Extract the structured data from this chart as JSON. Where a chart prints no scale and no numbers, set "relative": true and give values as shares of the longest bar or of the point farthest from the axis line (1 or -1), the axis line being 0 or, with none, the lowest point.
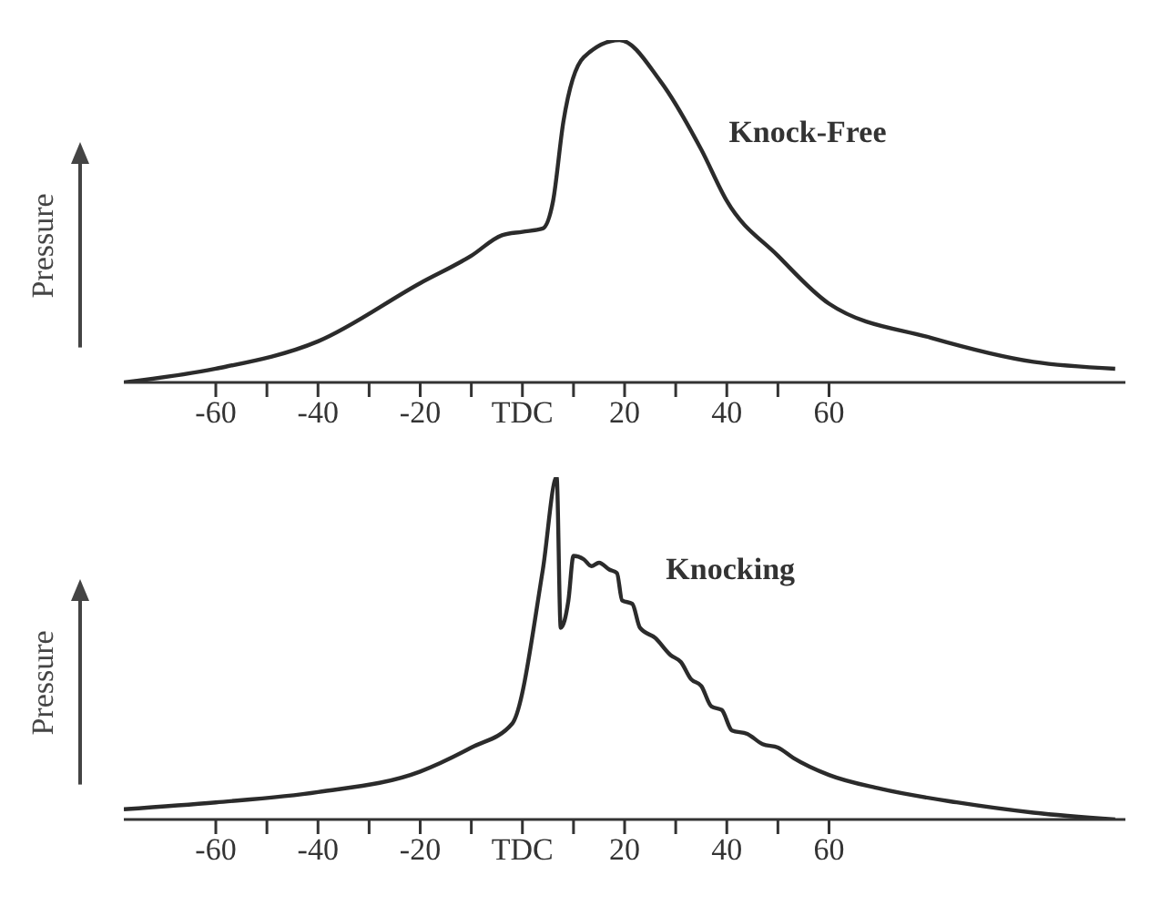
{
  "chart_data": [
    {
      "type": "line",
      "ylabel": "Pressure",
      "relative": true,
      "tick_labels": "x",
      "xlim": [
        -78,
        118
      ],
      "xticks": [
        -60,
        {
          "value": -50,
          "label": null
        },
        -40,
        {
          "value": -30,
          "label": null
        },
        -20,
        {
          "value": -10,
          "label": null
        },
        {
          "value": 0,
          "label": "TDC"
        },
        {
          "value": 10,
          "label": null
        },
        20,
        {
          "value": 30,
          "label": null
        },
        40,
        {
          "value": 50,
          "label": null
        },
        60
      ],
      "series": [
        {
          "name": "Knock-Free",
          "color": "#2b2b2b",
          "x": [
            -78,
            -60,
            -40,
            -20,
            -10,
            -4,
            0,
            4,
            6,
            8,
            12,
            19,
            27,
            35,
            40,
            50,
            60,
            80,
            100,
            116
          ],
          "values": [
            0,
            0.04,
            0.12,
            0.29,
            0.37,
            0.43,
            0.44,
            0.45,
            0.53,
            0.76,
            0.95,
            1,
            0.88,
            0.68,
            0.53,
            0.37,
            0.23,
            0.13,
            0.06,
            0.04
          ]
        }
      ]
    },
    {
      "type": "line",
      "ylabel": "Pressure",
      "relative": true,
      "tick_labels": "x",
      "xlim": [
        -78,
        118
      ],
      "xticks": [
        -60,
        {
          "value": -50,
          "label": null
        },
        -40,
        {
          "value": -30,
          "label": null
        },
        -20,
        {
          "value": -10,
          "label": null
        },
        {
          "value": 0,
          "label": "TDC"
        },
        {
          "value": 10,
          "label": null
        },
        20,
        {
          "value": 30,
          "label": null
        },
        40,
        {
          "value": 50,
          "label": null
        },
        60
      ],
      "series": [
        {
          "name": "Knocking",
          "color": "#2b2b2b",
          "x": [
            -78,
            -60,
            -40,
            -20,
            -10,
            -2,
            4,
            6.7,
            7.5,
            9,
            10,
            12,
            13.5,
            15,
            17,
            18.5,
            19.5,
            21.5,
            23,
            26,
            29,
            31,
            33,
            35,
            37,
            39,
            41,
            44,
            47,
            50,
            53,
            60,
            70,
            85,
            100,
            116
          ],
          "values": [
            0.03,
            0.05,
            0.08,
            0.14,
            0.21,
            0.28,
            0.73,
            1,
            0.56,
            0.64,
            0.77,
            0.76,
            0.74,
            0.75,
            0.73,
            0.72,
            0.64,
            0.63,
            0.56,
            0.53,
            0.48,
            0.46,
            0.41,
            0.39,
            0.33,
            0.32,
            0.26,
            0.25,
            0.22,
            0.21,
            0.18,
            0.13,
            0.09,
            0.05,
            0.02,
            0
          ]
        }
      ]
    }
  ]
}
